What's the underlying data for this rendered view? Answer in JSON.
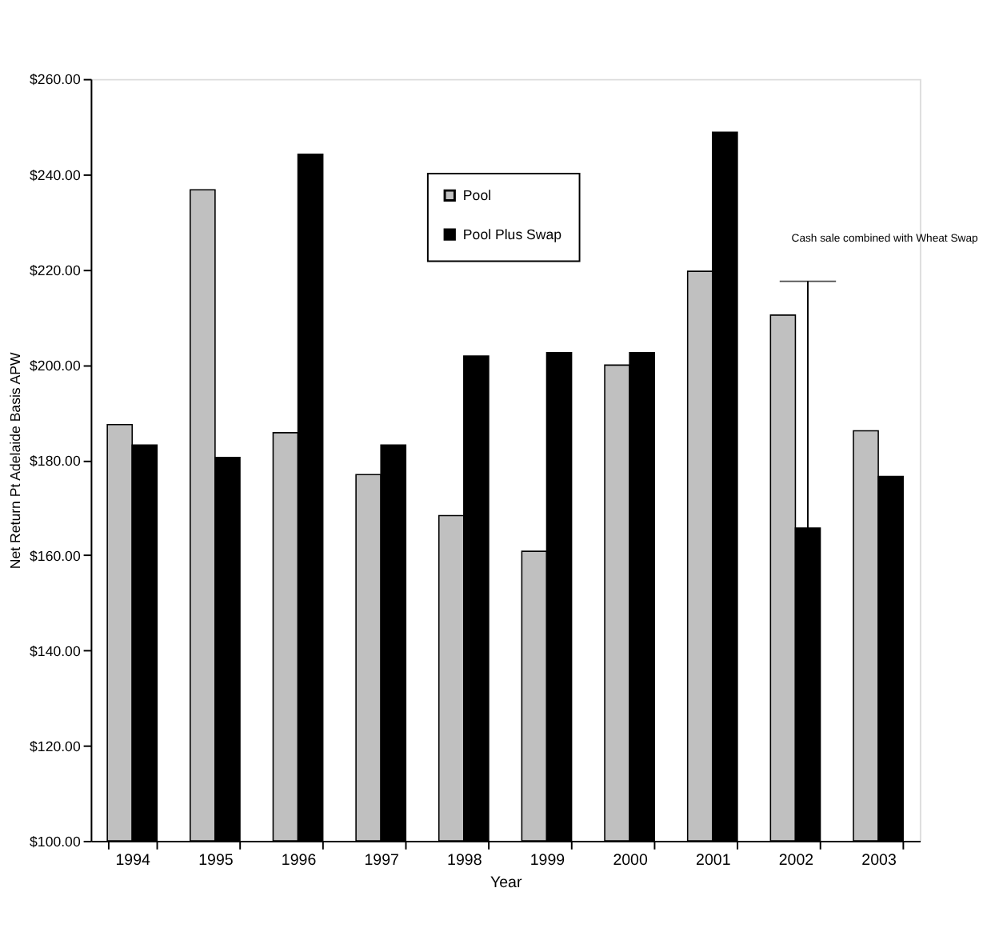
{
  "chart_data": {
    "type": "bar",
    "xlabel": "Year",
    "ylabel": "Net Return Pt Adelaide Basis APW",
    "categories": [
      "1994",
      "1995",
      "1996",
      "1997",
      "1998",
      "1999",
      "2000",
      "2001",
      "2002",
      "2003"
    ],
    "series": [
      {
        "name": "Pool",
        "color": "#c0c0c0",
        "values": [
          187.4,
          236.7,
          185.7,
          176.9,
          168.3,
          160.8,
          199.9,
          219.6,
          210.4,
          186.1
        ]
      },
      {
        "name": "Pool Plus Swap",
        "color": "#000000",
        "values": [
          183.1,
          180.5,
          244.2,
          183.1,
          201.8,
          202.5,
          202.5,
          248.8,
          165.7,
          176.5
        ],
        "errors": [
          null,
          null,
          null,
          null,
          null,
          null,
          null,
          null,
          [
            165.7,
            217.5
          ],
          null
        ]
      }
    ],
    "ylim": [
      100,
      260
    ],
    "yticks": [
      {
        "value": 100,
        "label": "$100.00"
      },
      {
        "value": 120,
        "label": "$120.00"
      },
      {
        "value": 140,
        "label": "$140.00"
      },
      {
        "value": 160,
        "label": "$160.00"
      },
      {
        "value": 180,
        "label": "$180.00"
      },
      {
        "value": 200,
        "label": "$200.00"
      },
      {
        "value": 220,
        "label": "$220.00"
      },
      {
        "value": 240,
        "label": "$240.00"
      },
      {
        "value": 260,
        "label": "$260.00"
      }
    ],
    "annotations": [
      "Cash sale combined with Wheat Swap"
    ],
    "grid": false,
    "legend": "top"
  }
}
